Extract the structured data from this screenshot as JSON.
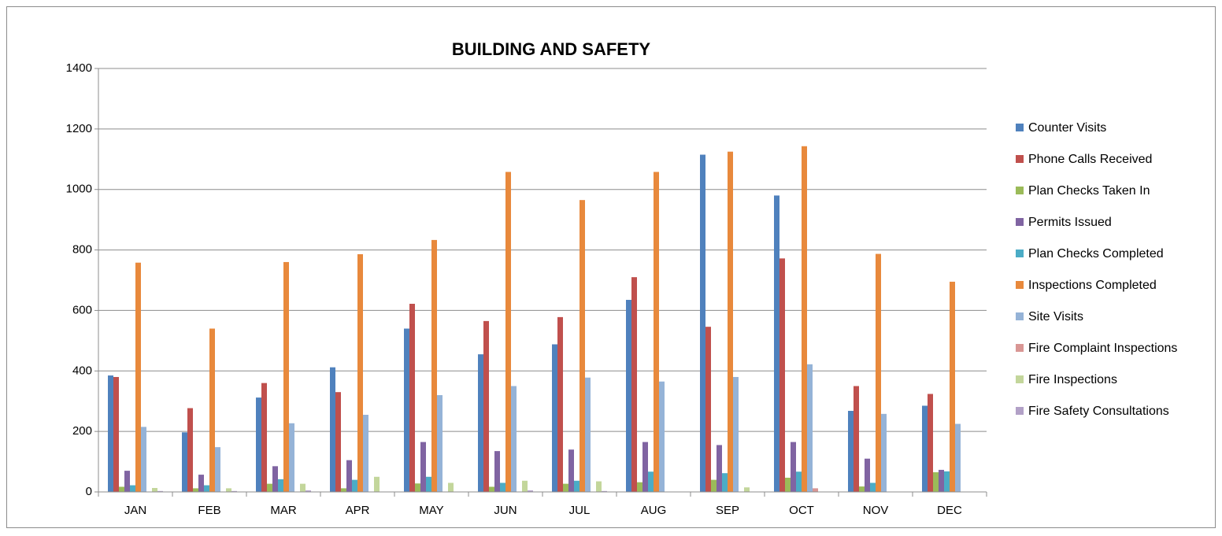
{
  "chart_data": {
    "type": "bar",
    "title": "BUILDING AND SAFETY",
    "categories": [
      "JAN",
      "FEB",
      "MAR",
      "APR",
      "MAY",
      "JUN",
      "JUL",
      "AUG",
      "SEP",
      "OCT",
      "NOV",
      "DEC"
    ],
    "series": [
      {
        "name": "Counter Visits",
        "color": "#4f81bd",
        "values": [
          385,
          197,
          312,
          412,
          540,
          455,
          488,
          635,
          1115,
          980,
          268,
          285
        ]
      },
      {
        "name": "Phone Calls Received",
        "color": "#c0504d",
        "values": [
          380,
          277,
          360,
          330,
          622,
          565,
          578,
          710,
          546,
          772,
          350,
          324
        ]
      },
      {
        "name": "Plan Checks Taken In",
        "color": "#9bbb59",
        "values": [
          17,
          12,
          27,
          12,
          28,
          17,
          27,
          32,
          40,
          47,
          18,
          65
        ]
      },
      {
        "name": "Permits Issued",
        "color": "#8064a2",
        "values": [
          70,
          57,
          85,
          105,
          165,
          135,
          140,
          165,
          155,
          165,
          110,
          73
        ]
      },
      {
        "name": "Plan Checks Completed",
        "color": "#4bacc6",
        "values": [
          22,
          22,
          42,
          40,
          50,
          30,
          37,
          67,
          62,
          67,
          30,
          68
        ]
      },
      {
        "name": "Inspections Completed",
        "color": "#e8893c",
        "values": [
          758,
          540,
          760,
          786,
          833,
          1058,
          965,
          1058,
          1125,
          1143,
          787,
          695
        ]
      },
      {
        "name": "Site Visits",
        "color": "#95b3d7",
        "values": [
          215,
          148,
          227,
          255,
          320,
          350,
          378,
          365,
          380,
          422,
          258,
          225
        ]
      },
      {
        "name": "Fire Complaint Inspections",
        "color": "#d99694",
        "values": [
          0,
          0,
          0,
          0,
          0,
          0,
          0,
          0,
          0,
          12,
          0,
          0
        ]
      },
      {
        "name": "Fire Inspections",
        "color": "#c3d69b",
        "values": [
          13,
          12,
          27,
          50,
          30,
          37,
          35,
          0,
          15,
          0,
          0,
          0
        ]
      },
      {
        "name": "Fire Safety Consultations",
        "color": "#b2a1c7",
        "values": [
          3,
          3,
          5,
          0,
          0,
          5,
          3,
          0,
          0,
          0,
          0,
          0
        ]
      }
    ],
    "ylim": [
      0,
      1400
    ],
    "yticks": [
      0,
      200,
      400,
      600,
      800,
      1000,
      1200,
      1400
    ],
    "grid": true,
    "legend": "right"
  }
}
